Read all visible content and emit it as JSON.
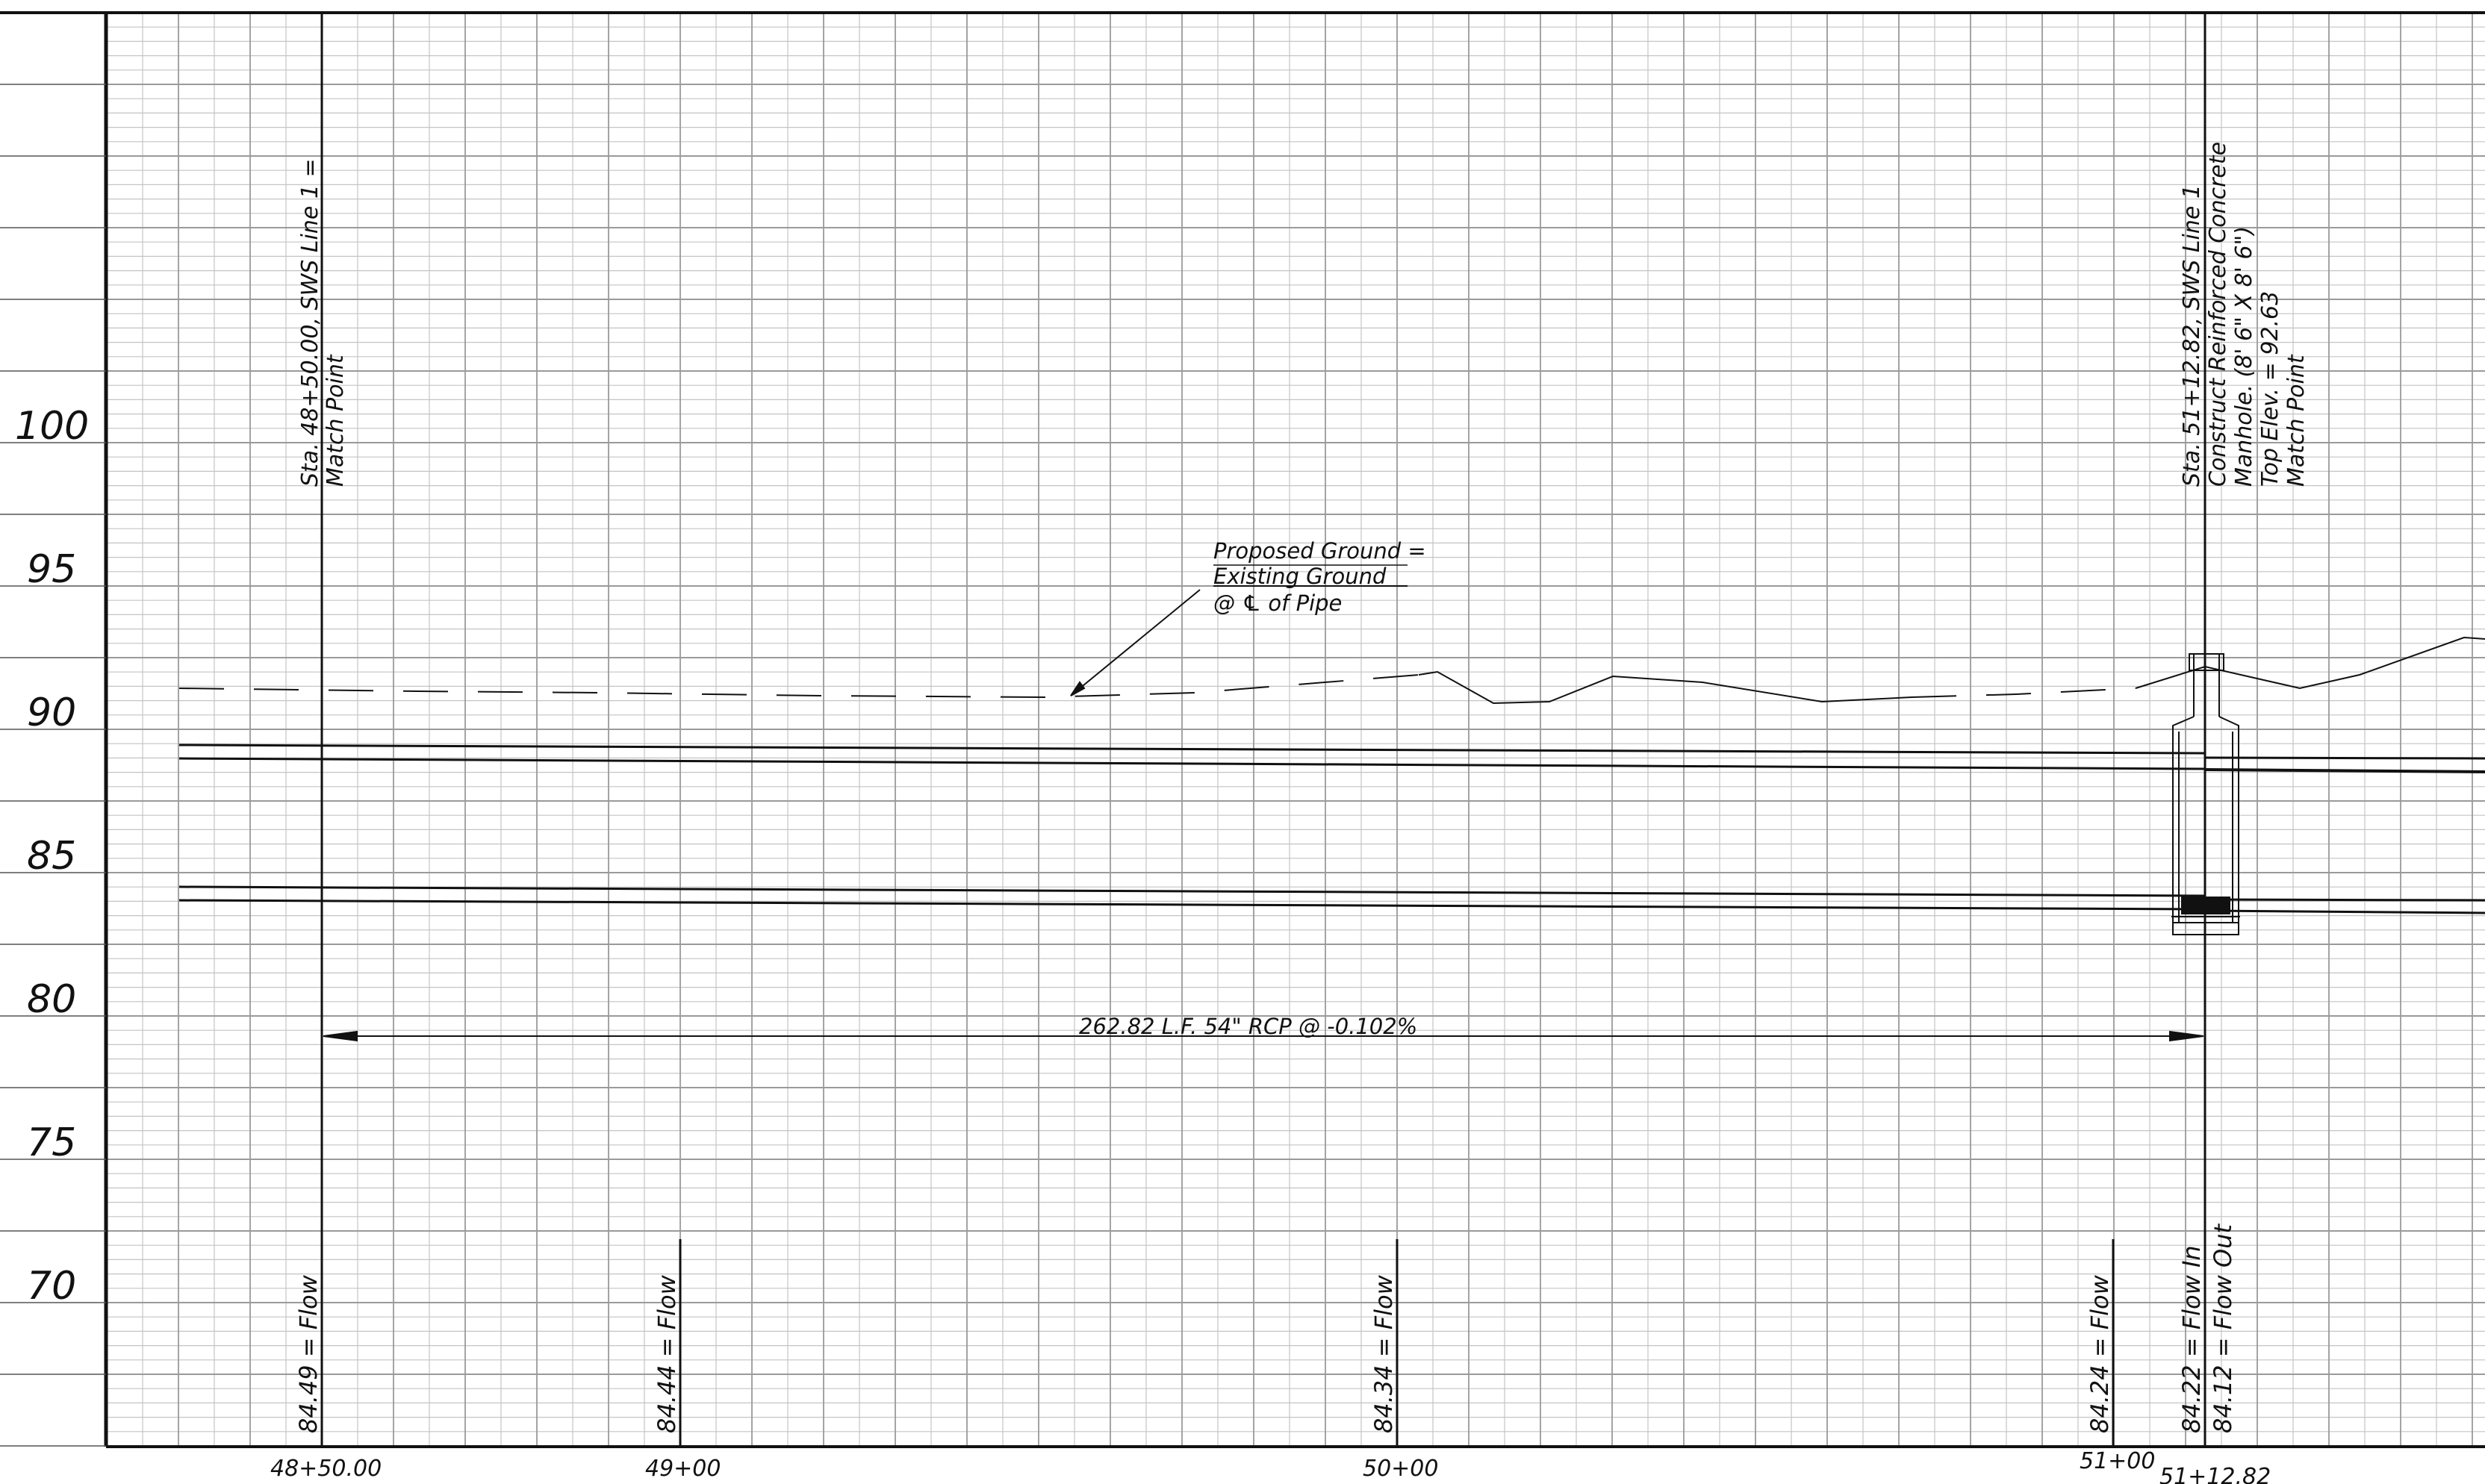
{
  "drawing": {
    "elevation_labels": [
      "100",
      "95",
      "90",
      "85",
      "80",
      "75",
      "70"
    ],
    "station_labels": [
      "48+50.00",
      "49+00",
      "50+00",
      "51+00",
      "51+12.82"
    ],
    "match_point_left": {
      "line1": "Sta. 48+50.00, SWS Line 1 =",
      "line2": "Match Point"
    },
    "manhole_note": {
      "line1": "Sta. 51+12.82, SWS Line 1",
      "line2": "Construct Reinforced Concrete",
      "line3": "Manhole. (8' 6\" X 8' 6\")",
      "line4": "Top Elev. = 92.63",
      "line5": "Match Point"
    },
    "ground_callout": {
      "line1": "Proposed Ground =",
      "line2": "Existing Ground",
      "line3": "@ ℄ of Pipe"
    },
    "pipe_dimension": "262.82 L.F. 54\" RCP @ -0.102%",
    "flow_labels": [
      "84.49 = Flow",
      "84.44 = Flow",
      "84.34 = Flow",
      "84.24 = Flow",
      "84.22 = Flow In",
      "84.12 = Flow Out"
    ],
    "colors": {
      "line": "#111111",
      "grid_major": "#9a9a9a",
      "grid_minor": "#c4c4c4"
    }
  }
}
